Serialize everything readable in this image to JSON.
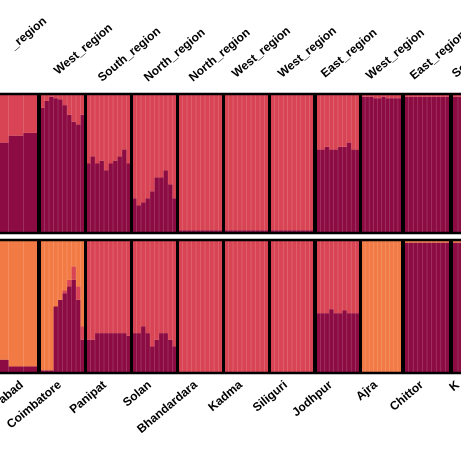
{
  "chart_data": {
    "type": "bar",
    "subtype": "stacked-admixture (STRUCTURE-style), two panels",
    "region_labels": [
      "_region",
      "West_region",
      "South_region",
      "North_region",
      "North_region",
      "West_region",
      "West_region",
      "East_region",
      "West_region",
      "East_region",
      "South"
    ],
    "population_labels": [
      "abad",
      "Coimbatore",
      "Panipat",
      "Solan",
      "Bhandardara",
      "Kadma",
      "Siliguri",
      "Jodhpur",
      "Ajra",
      "Chittor",
      "K"
    ],
    "colors": {
      "dark": "#8c0b42",
      "medium": "#d84453",
      "orange": "#f27a45",
      "border": "#000000"
    },
    "ylim": [
      0,
      1
    ],
    "panels": [
      {
        "name": "",
        "components": [
          "dark",
          "medium"
        ],
        "groups": [
          {
            "label": "abad",
            "component_fraction_dark": [
              0.65,
              0.7,
              0.72
            ]
          },
          {
            "label": "Coimbatore",
            "component_fraction_dark": [
              0.9,
              0.95,
              0.98,
              0.97,
              0.96,
              0.92,
              0.85,
              0.8,
              0.78,
              0.85
            ]
          },
          {
            "label": "Panipat",
            "component_fraction_dark": [
              0.5,
              0.55,
              0.5,
              0.52,
              0.45,
              0.5,
              0.52,
              0.55,
              0.6,
              0.5
            ]
          },
          {
            "label": "Solan",
            "component_fraction_dark": [
              0.25,
              0.2,
              0.22,
              0.25,
              0.3,
              0.4,
              0.4,
              0.45,
              0.35,
              0.25
            ]
          },
          {
            "label": "Bhandardara",
            "component_fraction_dark": [
              0.02,
              0.02,
              0.02,
              0.02,
              0.02,
              0.02,
              0.02,
              0.02,
              0.02,
              0.02
            ]
          },
          {
            "label": "Kadma",
            "component_fraction_dark": [
              0.02,
              0.02,
              0.02,
              0.02,
              0.02,
              0.02,
              0.02,
              0.02,
              0.02,
              0.02
            ]
          },
          {
            "label": "Siliguri",
            "component_fraction_dark": [
              0.02,
              0.02,
              0.02,
              0.02,
              0.02,
              0.02,
              0.02,
              0.02,
              0.02,
              0.02
            ]
          },
          {
            "label": "Jodhpur",
            "component_fraction_dark": [
              0.6,
              0.6,
              0.62,
              0.6,
              0.6,
              0.62,
              0.62,
              0.65,
              0.6,
              0.6
            ]
          },
          {
            "label": "Ajra",
            "component_fraction_dark": [
              0.98,
              0.98,
              0.98,
              0.97,
              0.97,
              0.98,
              0.97,
              0.97,
              0.97,
              0.97
            ]
          },
          {
            "label": "Chittor",
            "component_fraction_dark": [
              0.98,
              0.98,
              0.98,
              0.98,
              0.98,
              0.98,
              0.98,
              0.98,
              0.98,
              0.98
            ]
          },
          {
            "label": "K",
            "component_fraction_dark": [
              0.98,
              0.98,
              0.98
            ]
          }
        ]
      },
      {
        "name": "",
        "components": [
          "dark",
          "medium",
          "orange"
        ],
        "groups": [
          {
            "label": "abad",
            "fractions": [
              [
                0.1,
                0.0,
                0.9
              ],
              [
                0.05,
                0.0,
                0.95
              ],
              [
                0.05,
                0.0,
                0.95
              ]
            ]
          },
          {
            "label": "Coimbatore",
            "fractions": [
              [
                0.02,
                0.0,
                0.98
              ],
              [
                0.02,
                0.0,
                0.98
              ],
              [
                0.02,
                0.0,
                0.98
              ],
              [
                0.5,
                0.0,
                0.5
              ],
              [
                0.55,
                0.0,
                0.45
              ],
              [
                0.6,
                0.02,
                0.38
              ],
              [
                0.65,
                0.05,
                0.3
              ],
              [
                0.7,
                0.1,
                0.2
              ],
              [
                0.55,
                0.1,
                0.35
              ],
              [
                0.25,
                0.1,
                0.65
              ]
            ]
          },
          {
            "label": "Panipat",
            "fractions": [
              [
                0.25,
                0.75,
                0.0
              ],
              [
                0.25,
                0.75,
                0.0
              ],
              [
                0.3,
                0.7,
                0.0
              ],
              [
                0.3,
                0.7,
                0.0
              ],
              [
                0.3,
                0.7,
                0.0
              ],
              [
                0.3,
                0.7,
                0.0
              ],
              [
                0.3,
                0.7,
                0.0
              ],
              [
                0.3,
                0.7,
                0.0
              ],
              [
                0.3,
                0.7,
                0.0
              ],
              [
                0.28,
                0.72,
                0.0
              ]
            ]
          },
          {
            "label": "Solan",
            "fractions": [
              [
                0.3,
                0.7,
                0.0
              ],
              [
                0.3,
                0.7,
                0.0
              ],
              [
                0.35,
                0.65,
                0.0
              ],
              [
                0.3,
                0.7,
                0.0
              ],
              [
                0.2,
                0.8,
                0.0
              ],
              [
                0.25,
                0.75,
                0.0
              ],
              [
                0.3,
                0.7,
                0.0
              ],
              [
                0.3,
                0.7,
                0.0
              ],
              [
                0.25,
                0.75,
                0.0
              ],
              [
                0.2,
                0.8,
                0.0
              ]
            ]
          },
          {
            "label": "Bhandardara",
            "fractions": [
              [
                0.0,
                1.0,
                0.0
              ],
              [
                0.0,
                1.0,
                0.0
              ],
              [
                0.0,
                1.0,
                0.0
              ],
              [
                0.0,
                1.0,
                0.0
              ],
              [
                0.0,
                1.0,
                0.0
              ],
              [
                0.0,
                1.0,
                0.0
              ],
              [
                0.0,
                1.0,
                0.0
              ],
              [
                0.0,
                1.0,
                0.0
              ],
              [
                0.0,
                1.0,
                0.0
              ],
              [
                0.0,
                1.0,
                0.0
              ]
            ]
          },
          {
            "label": "Kadma",
            "fractions": [
              [
                0.0,
                1.0,
                0.0
              ],
              [
                0.0,
                1.0,
                0.0
              ],
              [
                0.0,
                1.0,
                0.0
              ],
              [
                0.0,
                1.0,
                0.0
              ],
              [
                0.0,
                1.0,
                0.0
              ],
              [
                0.0,
                1.0,
                0.0
              ],
              [
                0.0,
                1.0,
                0.0
              ],
              [
                0.0,
                1.0,
                0.0
              ],
              [
                0.0,
                1.0,
                0.0
              ],
              [
                0.0,
                1.0,
                0.0
              ]
            ]
          },
          {
            "label": "Siliguri",
            "fractions": [
              [
                0.0,
                1.0,
                0.0
              ],
              [
                0.0,
                1.0,
                0.0
              ],
              [
                0.0,
                1.0,
                0.0
              ],
              [
                0.0,
                1.0,
                0.0
              ],
              [
                0.0,
                1.0,
                0.0
              ],
              [
                0.0,
                1.0,
                0.0
              ],
              [
                0.0,
                1.0,
                0.0
              ],
              [
                0.0,
                1.0,
                0.0
              ],
              [
                0.0,
                1.0,
                0.0
              ],
              [
                0.0,
                1.0,
                0.0
              ]
            ]
          },
          {
            "label": "Jodhpur",
            "fractions": [
              [
                0.45,
                0.55,
                0.0
              ],
              [
                0.45,
                0.55,
                0.0
              ],
              [
                0.45,
                0.55,
                0.0
              ],
              [
                0.48,
                0.52,
                0.0
              ],
              [
                0.45,
                0.55,
                0.0
              ],
              [
                0.45,
                0.55,
                0.0
              ],
              [
                0.47,
                0.53,
                0.0
              ],
              [
                0.45,
                0.55,
                0.0
              ],
              [
                0.45,
                0.55,
                0.0
              ],
              [
                0.45,
                0.55,
                0.0
              ]
            ]
          },
          {
            "label": "Ajra",
            "fractions": [
              [
                0.0,
                0.0,
                1.0
              ],
              [
                0.0,
                0.0,
                1.0
              ],
              [
                0.0,
                0.0,
                1.0
              ],
              [
                0.0,
                0.0,
                1.0
              ],
              [
                0.0,
                0.0,
                1.0
              ],
              [
                0.0,
                0.0,
                1.0
              ],
              [
                0.0,
                0.0,
                1.0
              ],
              [
                0.0,
                0.0,
                1.0
              ],
              [
                0.0,
                0.0,
                1.0
              ],
              [
                0.0,
                0.0,
                1.0
              ]
            ]
          },
          {
            "label": "Chittor",
            "fractions": [
              [
                0.98,
                0.0,
                0.02
              ],
              [
                0.98,
                0.0,
                0.02
              ],
              [
                0.98,
                0.0,
                0.02
              ],
              [
                0.98,
                0.0,
                0.02
              ],
              [
                0.98,
                0.0,
                0.02
              ],
              [
                0.98,
                0.0,
                0.02
              ],
              [
                0.98,
                0.0,
                0.02
              ],
              [
                0.98,
                0.0,
                0.02
              ],
              [
                0.98,
                0.0,
                0.02
              ],
              [
                0.98,
                0.0,
                0.02
              ]
            ]
          },
          {
            "label": "K",
            "fractions": [
              [
                0.98,
                0.0,
                0.02
              ],
              [
                0.98,
                0.0,
                0.02
              ],
              [
                0.98,
                0.0,
                0.02
              ]
            ]
          }
        ]
      }
    ]
  }
}
